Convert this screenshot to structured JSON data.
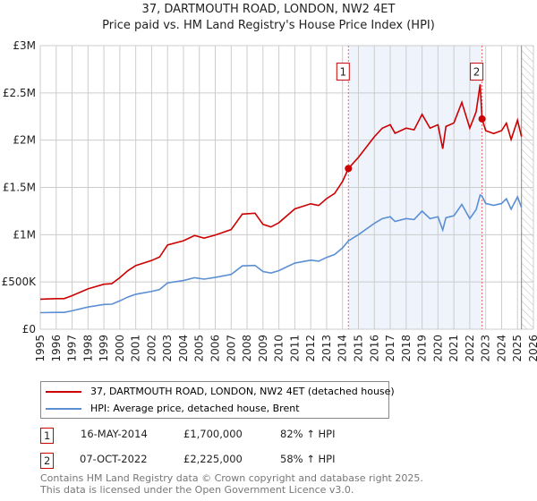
{
  "chart_data": {
    "type": "line",
    "title": "37, DARTMOUTH ROAD, LONDON, NW2 4ET",
    "subtitle": "Price paid vs. HM Land Registry's House Price Index (HPI)",
    "xlim": [
      1995,
      2026
    ],
    "ylim": [
      0,
      3000000
    ],
    "y_ticks": [
      {
        "v": 0,
        "label": "£0"
      },
      {
        "v": 500000,
        "label": "£500K"
      },
      {
        "v": 1000000,
        "label": "£1M"
      },
      {
        "v": 1500000,
        "label": "£1.5M"
      },
      {
        "v": 2000000,
        "label": "£2M"
      },
      {
        "v": 2500000,
        "label": "£2.5M"
      },
      {
        "v": 3000000,
        "label": "£3M"
      }
    ],
    "x_ticks": [
      "1995",
      "1996",
      "1997",
      "1998",
      "1999",
      "2000",
      "2001",
      "2002",
      "2003",
      "2004",
      "2005",
      "2006",
      "2007",
      "2008",
      "2009",
      "2010",
      "2011",
      "2012",
      "2013",
      "2014",
      "2015",
      "2016",
      "2017",
      "2018",
      "2019",
      "2020",
      "2021",
      "2022",
      "2023",
      "2024",
      "2025",
      "2026"
    ],
    "grid": true,
    "shaded_range": [
      2014.37,
      2022.77
    ],
    "forecast_hatch_from": 2025.25,
    "series": [
      {
        "name": "37, DARTMOUTH ROAD, LONDON, NW2 4ET (detached house)",
        "color": "#cc0000",
        "x": [
          1995,
          1996,
          1996.5,
          1997,
          1998,
          1999,
          1999.5,
          2000,
          2000.5,
          2001,
          2002,
          2002.5,
          2003,
          2004,
          2004.7,
          2005.3,
          2006,
          2007,
          2007.7,
          2008.5,
          2009,
          2009.5,
          2010,
          2011,
          2012,
          2012.5,
          2013,
          2013.5,
          2014,
          2014.37,
          2015,
          2016,
          2016.5,
          2017,
          2017.3,
          2018,
          2018.5,
          2019,
          2019.5,
          2020,
          2020.3,
          2020.5,
          2021,
          2021.5,
          2022,
          2022.4,
          2022.65,
          2022.77,
          2023,
          2023.5,
          2024,
          2024.3,
          2024.6,
          2025,
          2025.25
        ],
        "y": [
          318000,
          324000,
          324000,
          355000,
          427000,
          476000,
          482000,
          545000,
          618000,
          673000,
          727000,
          764000,
          891000,
          936000,
          991000,
          964000,
          996000,
          1054000,
          1218000,
          1227000,
          1109000,
          1082000,
          1127000,
          1273000,
          1327000,
          1309000,
          1382000,
          1436000,
          1563000,
          1700000,
          1818000,
          2036000,
          2127000,
          2163000,
          2073000,
          2127000,
          2109000,
          2273000,
          2127000,
          2163000,
          1909000,
          2145000,
          2182000,
          2400000,
          2127000,
          2300000,
          2590000,
          2225000,
          2101000,
          2070000,
          2101000,
          2180000,
          2007000,
          2212000,
          2038000
        ]
      },
      {
        "name": "HPI: Average price, detached house, Brent",
        "color": "#5b8fd4",
        "x": [
          1995,
          1996,
          1996.5,
          1997,
          1998,
          1999,
          1999.5,
          2000,
          2000.5,
          2001,
          2002,
          2002.5,
          2003,
          2004,
          2004.7,
          2005.3,
          2006,
          2007,
          2007.7,
          2008.5,
          2009,
          2009.5,
          2010,
          2011,
          2012,
          2012.5,
          2013,
          2013.5,
          2014,
          2014.37,
          2015,
          2016,
          2016.5,
          2017,
          2017.3,
          2018,
          2018.5,
          2019,
          2019.5,
          2020,
          2020.3,
          2020.5,
          2021,
          2021.5,
          2022,
          2022.4,
          2022.65,
          2022.77,
          2023,
          2023.5,
          2024,
          2024.3,
          2024.6,
          2025,
          2025.25
        ],
        "y": [
          175000,
          178000,
          178000,
          195000,
          235000,
          262000,
          265000,
          300000,
          340000,
          370000,
          400000,
          420000,
          490000,
          515000,
          545000,
          530000,
          548000,
          580000,
          670000,
          675000,
          610000,
          595000,
          620000,
          700000,
          730000,
          720000,
          760000,
          790000,
          860000,
          935000,
          1000000,
          1120000,
          1170000,
          1190000,
          1140000,
          1170000,
          1160000,
          1250000,
          1170000,
          1190000,
          1050000,
          1180000,
          1200000,
          1320000,
          1170000,
          1265000,
          1420000,
          1408000,
          1330000,
          1310000,
          1330000,
          1380000,
          1270000,
          1400000,
          1290000
        ]
      }
    ],
    "sales": [
      {
        "label": "1",
        "x": 2014.37,
        "y": 1700000
      },
      {
        "label": "2",
        "x": 2022.77,
        "y": 2225000
      }
    ]
  },
  "legend": {
    "red": "37, DARTMOUTH ROAD, LONDON, NW2 4ET (detached house)",
    "blue": "HPI: Average price, detached house, Brent"
  },
  "table": [
    {
      "num": "1",
      "date": "16-MAY-2014",
      "price": "£1,700,000",
      "hpi": "82% ↑ HPI"
    },
    {
      "num": "2",
      "date": "07-OCT-2022",
      "price": "£2,225,000",
      "hpi": "58% ↑ HPI"
    }
  ],
  "footer": {
    "line1": "Contains HM Land Registry data © Crown copyright and database right 2025.",
    "line2": "This data is licensed under the Open Government Licence v3.0."
  }
}
